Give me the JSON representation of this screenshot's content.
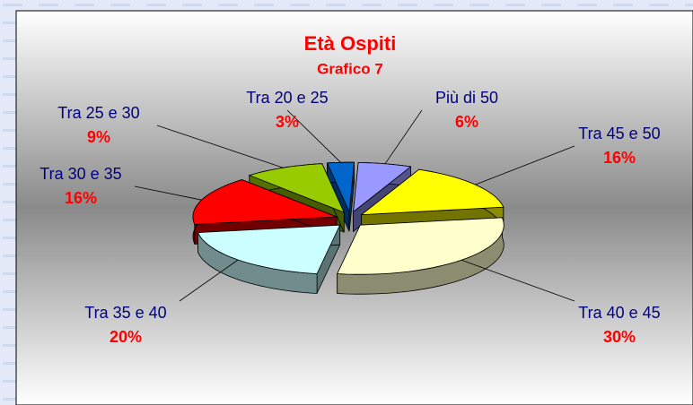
{
  "chart_data": {
    "type": "pie",
    "title": "Età Ospiti",
    "subtitle": "Grafico 7",
    "categories": [
      "Più di 50",
      "Tra 45 e 50",
      "Tra 40 e 45",
      "Tra 35 e 40",
      "Tra 30 e 35",
      "Tra 25 e 30",
      "Tra 20 e 25"
    ],
    "values": [
      6,
      16,
      30,
      20,
      16,
      9,
      3
    ],
    "value_labels": [
      "6%",
      "16%",
      "30%",
      "20%",
      "16%",
      "9%",
      "3%"
    ],
    "colors": [
      "#9999ff",
      "#ffff00",
      "#ffffcc",
      "#ccffff",
      "#ff0000",
      "#99cc00",
      "#0066cc"
    ]
  }
}
